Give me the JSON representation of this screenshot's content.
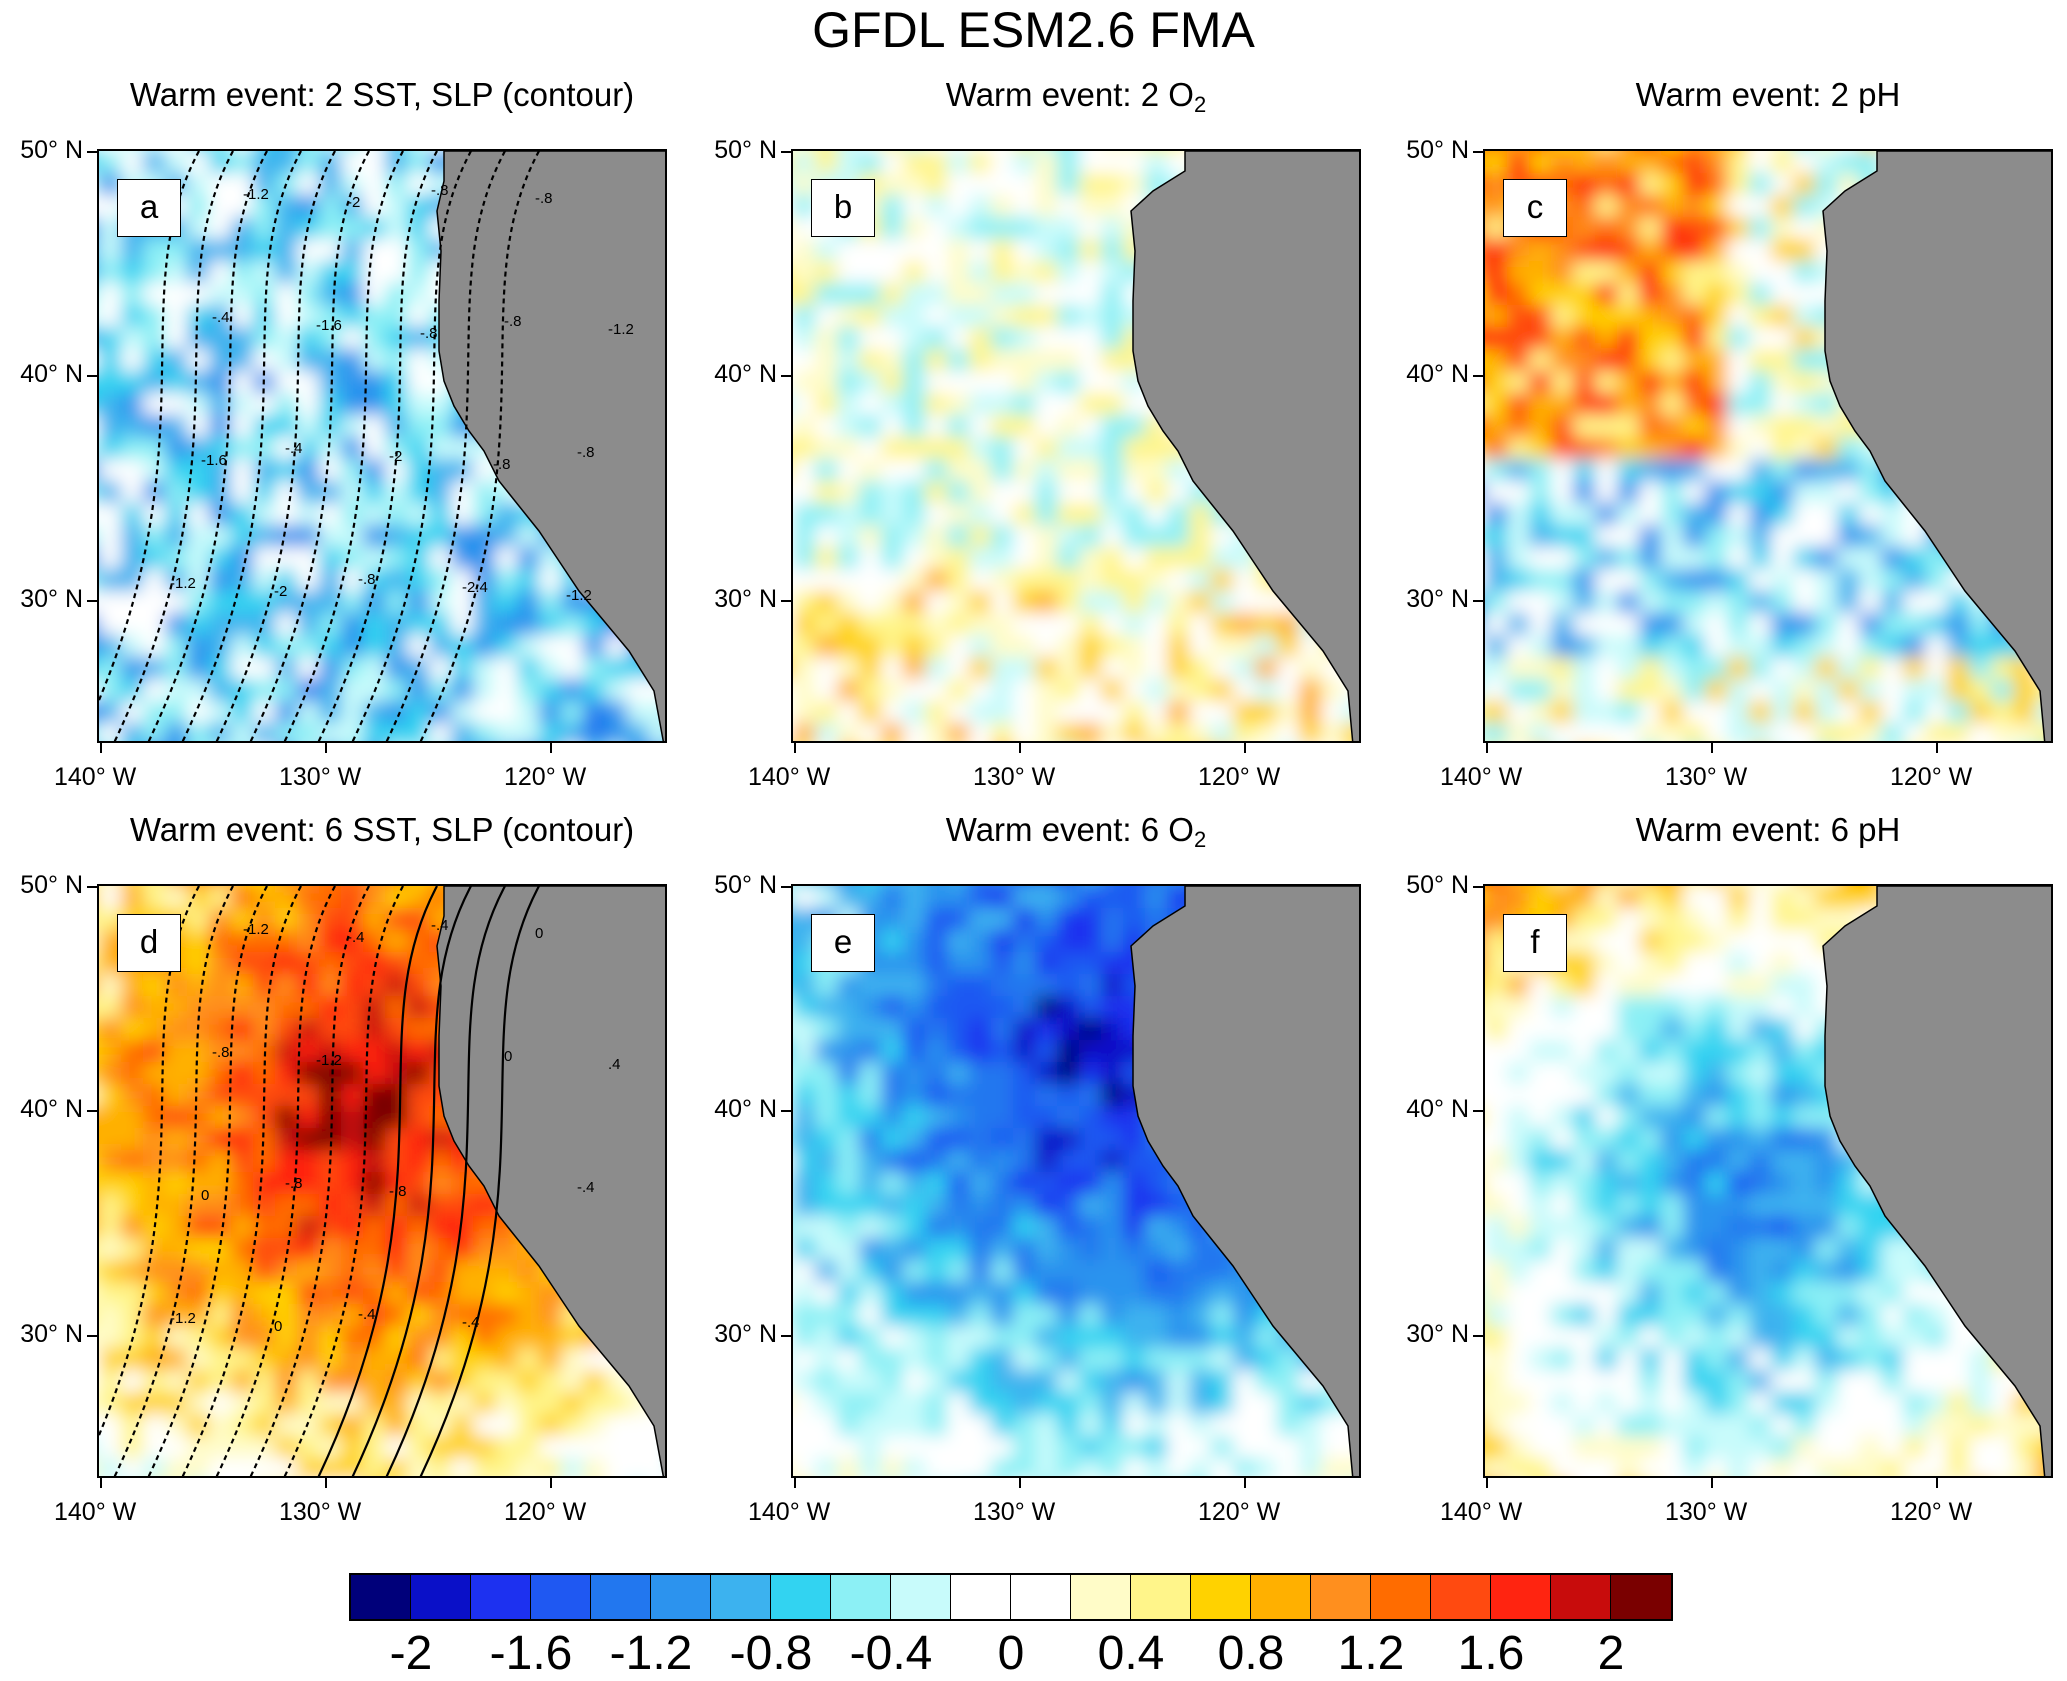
{
  "title": "GFDL ESM2.6 FMA",
  "y_axis_labels": [
    "50° N",
    "40° N",
    "30° N"
  ],
  "x_axis_labels": [
    "140° W",
    "130° W",
    "120° W"
  ],
  "panels": [
    {
      "label": "a",
      "title_main": "Warm event: 2 SST, SLP (contour)",
      "title_sub": "",
      "title_after": "",
      "field": "mixed-cool",
      "contours": true
    },
    {
      "label": "b",
      "title_main": "Warm event: 2 O",
      "title_sub": "2",
      "title_after": "",
      "field": "mixed-neutral",
      "contours": false
    },
    {
      "label": "c",
      "title_main": "Warm event:  2 pH",
      "title_sub": "",
      "title_after": "",
      "field": "mixed-warm",
      "contours": false
    },
    {
      "label": "d",
      "title_main": "Warm event: 6 SST, SLP (contour)",
      "title_sub": "",
      "title_after": "",
      "field": "strong-warm",
      "contours": true
    },
    {
      "label": "e",
      "title_main": "Warm event: 6 O",
      "title_sub": "2",
      "title_after": "",
      "field": "strong-cool",
      "contours": false
    },
    {
      "label": "f",
      "title_main": "Warm event: 6 pH",
      "title_sub": "",
      "title_after": "",
      "field": "moderate-cool",
      "contours": false
    }
  ],
  "contour_labels": {
    "a": [
      "-.4",
      "-.4",
      "-.4",
      "-.8",
      "-.8",
      "-.8",
      "-.8",
      "-1.2",
      "-1.2",
      "-1.6",
      "-2",
      "-2.4",
      "-.8",
      "-1.2",
      "-1.6",
      "-2",
      "-2",
      "-.8",
      "-.8",
      "-1.2"
    ],
    "d": [
      "-.4",
      "-.8",
      "-.8",
      "-.4",
      "-.4",
      "0",
      "-.4",
      "-1.2",
      "-1.2",
      "-1.2",
      "-.8",
      "-.4",
      "0",
      ".4",
      "0",
      "0",
      "-.4"
    ]
  },
  "colorbar": {
    "colors": [
      "#00007a",
      "#0a10c8",
      "#1d31f0",
      "#1f58f2",
      "#2277ef",
      "#2c93ee",
      "#3cb2ef",
      "#32d3f1",
      "#8cf0f5",
      "#c8fbfb",
      "#ffffff",
      "#ffffff",
      "#fffcc8",
      "#fff58a",
      "#ffd200",
      "#ffb000",
      "#ff8f1e",
      "#ff6c00",
      "#ff4a10",
      "#ff2410",
      "#c80c0c",
      "#7a0000"
    ],
    "tick_labels": [
      "-2",
      "-1.6",
      "-1.2",
      "-0.8",
      "-0.4",
      "0",
      "0.4",
      "0.8",
      "1.2",
      "1.6",
      "2"
    ]
  },
  "land_color": "#8c8c8c"
}
